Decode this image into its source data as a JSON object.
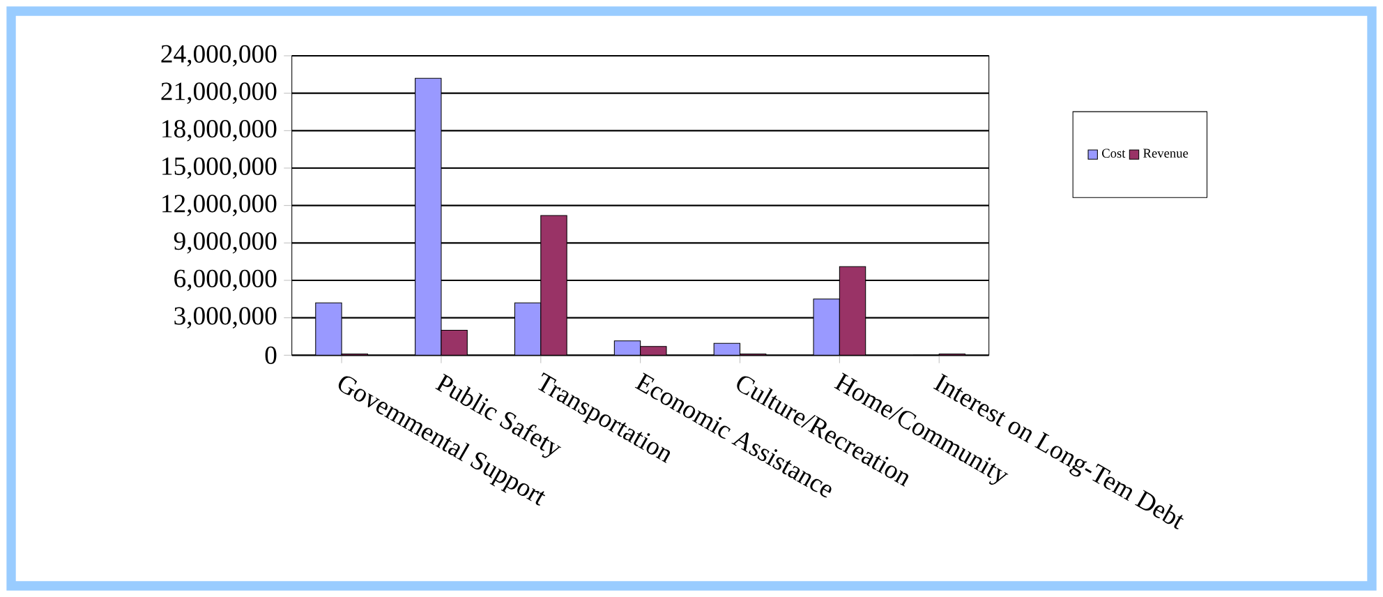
{
  "chart_data": {
    "type": "bar",
    "categories": [
      "Govemmental Support",
      "Public Safety",
      "Transportation",
      "Economic Assistance",
      "Culture/Recreation",
      "Home/Community",
      "Interest on Long-Tem Debt"
    ],
    "series": [
      {
        "name": "Cost",
        "color": "#9999ff",
        "values": [
          4200000,
          22200000,
          4200000,
          1150000,
          950000,
          4500000,
          0
        ]
      },
      {
        "name": "Revenue",
        "color": "#993366",
        "values": [
          100000,
          2000000,
          11200000,
          700000,
          100000,
          7100000,
          100000
        ]
      }
    ],
    "ylim": [
      0,
      24000000
    ],
    "yticks": [
      {
        "value": 0,
        "label": "0"
      },
      {
        "value": 3000000,
        "label": "3,000,000"
      },
      {
        "value": 6000000,
        "label": "6,000,000"
      },
      {
        "value": 9000000,
        "label": "9,000,000"
      },
      {
        "value": 12000000,
        "label": "12,000,000"
      },
      {
        "value": 15000000,
        "label": "15,000,000"
      },
      {
        "value": 18000000,
        "label": "18,000,000"
      },
      {
        "value": 21000000,
        "label": "21,000,000"
      },
      {
        "value": 24000000,
        "label": "24,000,000"
      }
    ],
    "grid": "y",
    "legend": "right"
  }
}
